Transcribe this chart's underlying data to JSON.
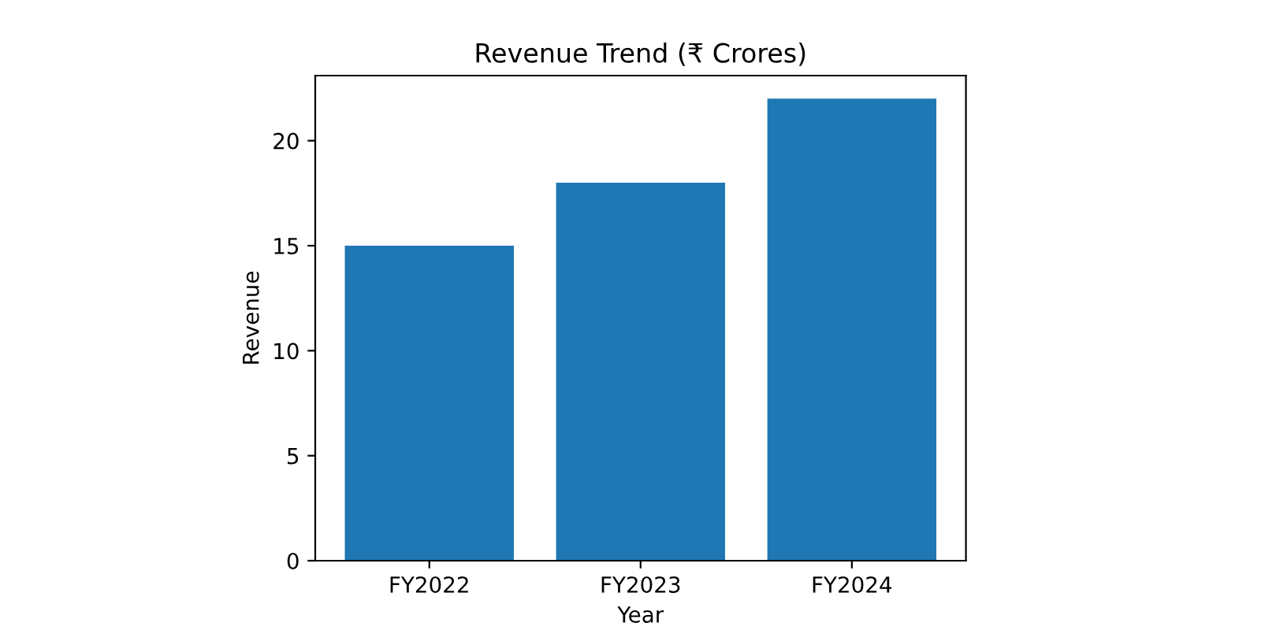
{
  "chart_data": {
    "type": "bar",
    "title": "Revenue Trend (₹ Crores)",
    "xlabel": "Year",
    "ylabel": "Revenue",
    "categories": [
      "FY2022",
      "FY2023",
      "FY2024"
    ],
    "values": [
      15,
      18,
      22
    ],
    "color": "#1f77b4",
    "ylim": [
      0,
      23.1
    ],
    "yticks": [
      0,
      5,
      10,
      15,
      20
    ],
    "grid": false
  }
}
